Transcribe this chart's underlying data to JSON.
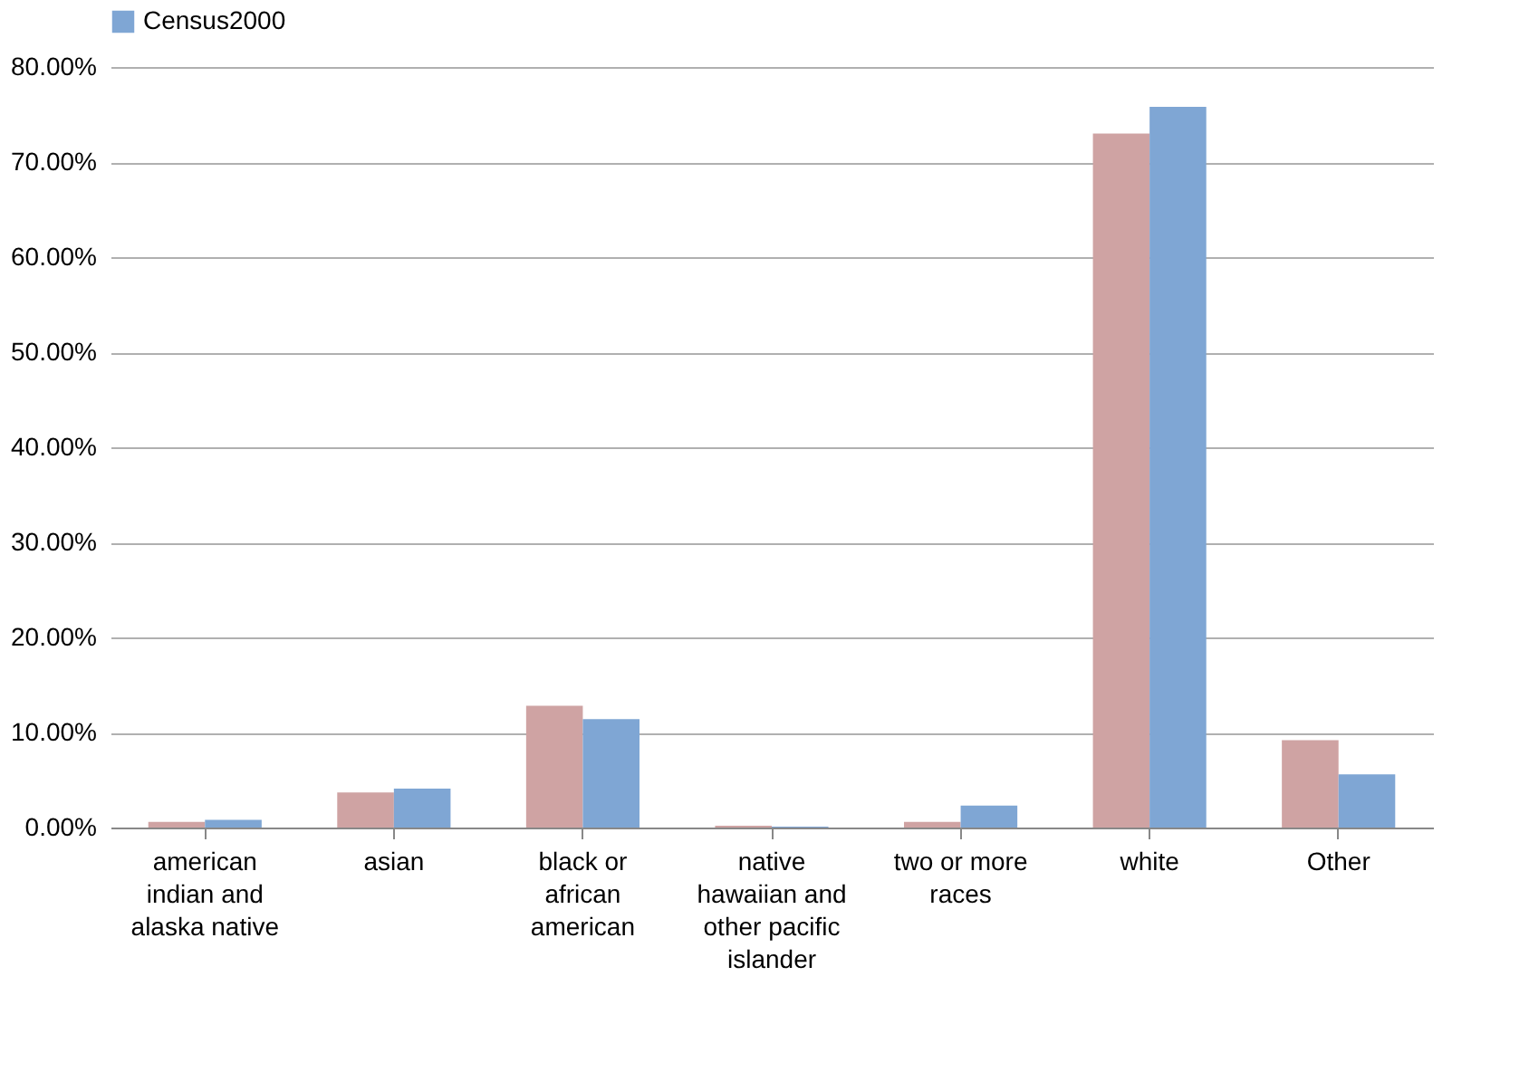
{
  "chart_data": {
    "type": "bar",
    "categories": [
      "american indian and alaska native",
      "asian",
      "black or african american",
      "native hawaiian and other pacific islander",
      "two or more races",
      "white",
      "Other"
    ],
    "series": [
      {
        "color": "#cfa3a3",
        "values": [
          0.6,
          3.7,
          12.8,
          0.2,
          0.6,
          73.0,
          9.2
        ]
      },
      {
        "name": "Census2000",
        "color": "#7fa6d4",
        "values": [
          0.8,
          4.1,
          11.4,
          0.1,
          2.3,
          75.8,
          5.6
        ]
      }
    ],
    "ylim": [
      0,
      80
    ],
    "yticks": [
      {
        "value": 0,
        "label": "0.00%"
      },
      {
        "value": 10,
        "label": "10.00%"
      },
      {
        "value": 20,
        "label": "20.00%"
      },
      {
        "value": 30,
        "label": "30.00%"
      },
      {
        "value": 40,
        "label": "40.00%"
      },
      {
        "value": 50,
        "label": "50.00%"
      },
      {
        "value": 60,
        "label": "60.00%"
      },
      {
        "value": 70,
        "label": "70.00%"
      },
      {
        "value": 80,
        "label": "80.00%"
      }
    ],
    "grid": "y",
    "legend": "top"
  }
}
